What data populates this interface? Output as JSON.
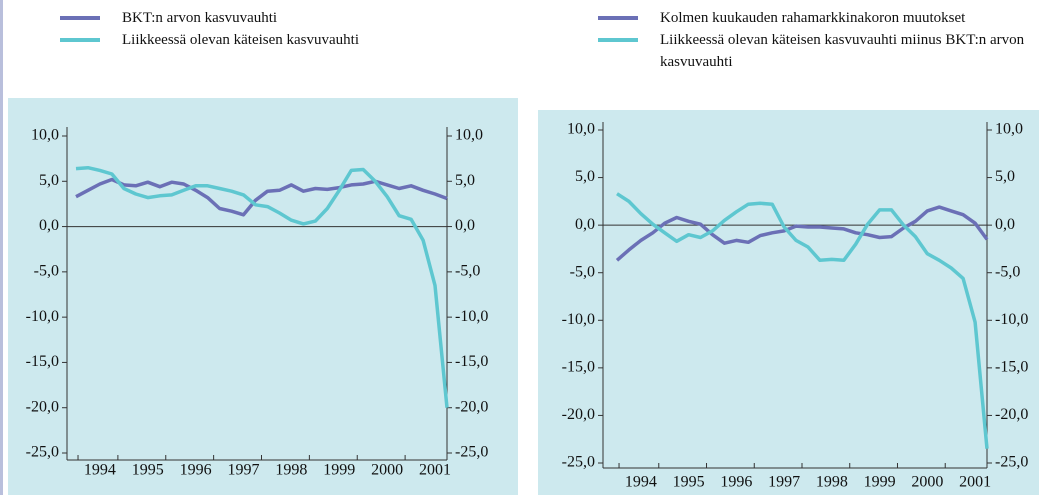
{
  "chart_data": [
    {
      "type": "line",
      "categories": [
        null,
        null,
        "1994",
        null,
        null,
        null,
        "1995",
        null,
        null,
        null,
        "1996",
        null,
        null,
        null,
        "1997",
        null,
        null,
        null,
        "1998",
        null,
        null,
        null,
        "1999",
        null,
        null,
        null,
        "2000",
        null,
        null,
        null,
        "2001",
        null
      ],
      "series": [
        {
          "name": "BKT:n arvon kasvuvauhti",
          "color": "#6b70b6",
          "values": [
            3.3,
            4.0,
            4.7,
            5.2,
            4.6,
            4.5,
            4.9,
            4.4,
            4.9,
            4.7,
            4.0,
            3.2,
            2.0,
            1.7,
            1.3,
            2.9,
            3.9,
            4.0,
            4.6,
            3.9,
            4.2,
            4.1,
            4.3,
            4.6,
            4.7,
            5.0,
            4.6,
            4.2,
            4.5,
            4.0,
            3.6,
            3.1
          ]
        },
        {
          "name": "Liikkeessä olevan käteisen kasvuvauhti",
          "color": "#5ec7d0",
          "values": [
            6.4,
            6.5,
            6.2,
            5.8,
            4.2,
            3.6,
            3.2,
            3.4,
            3.5,
            4.0,
            4.5,
            4.5,
            4.2,
            3.9,
            3.5,
            2.4,
            2.2,
            1.5,
            0.7,
            0.3,
            0.6,
            2.0,
            4.0,
            6.2,
            6.3,
            5.0,
            3.3,
            1.2,
            0.8,
            -1.5,
            -6.5,
            -20.0
          ]
        }
      ],
      "ylim": [
        -25,
        10
      ],
      "yticks": [
        {
          "value": 10,
          "label": "10,0"
        },
        {
          "value": 5,
          "label": "5,0"
        },
        {
          "value": 0,
          "label": "0,0"
        },
        {
          "value": -5,
          "label": "-5,0"
        },
        {
          "value": -10,
          "label": "-10,0"
        },
        {
          "value": -15,
          "label": "-15,0"
        },
        {
          "value": -20,
          "label": "-20,0"
        },
        {
          "value": -25,
          "label": "-25,0"
        }
      ],
      "y2lim": [
        -25,
        10
      ],
      "y2ticks": [
        {
          "value": 10,
          "label": "10,0"
        },
        {
          "value": 5,
          "label": "5,0"
        },
        {
          "value": 0,
          "label": "0,0"
        },
        {
          "value": -5,
          "label": "-5,0"
        },
        {
          "value": -10,
          "label": "-10,0"
        },
        {
          "value": -15,
          "label": "-15,0"
        },
        {
          "value": -20,
          "label": "-20,0"
        },
        {
          "value": -25,
          "label": "-25,0"
        }
      ]
    },
    {
      "type": "line",
      "categories": [
        null,
        null,
        "1994",
        null,
        null,
        null,
        "1995",
        null,
        null,
        null,
        "1996",
        null,
        null,
        null,
        "1997",
        null,
        null,
        null,
        "1998",
        null,
        null,
        null,
        "1999",
        null,
        null,
        null,
        "2000",
        null,
        null,
        null,
        "2001",
        null
      ],
      "series": [
        {
          "name": "Kolmen kuukauden rahamarkkinakoron muutokset",
          "color": "#6b70b6",
          "values": [
            -3.7,
            -2.6,
            -1.6,
            -0.8,
            0.2,
            0.8,
            0.4,
            0.1,
            -1.0,
            -1.9,
            -1.6,
            -1.8,
            -1.1,
            -0.8,
            -0.6,
            -0.1,
            -0.2,
            -0.2,
            -0.3,
            -0.4,
            -0.8,
            -1.0,
            -1.3,
            -1.2,
            -0.3,
            0.4,
            1.5,
            1.9,
            1.5,
            1.1,
            0.2,
            -1.5
          ]
        },
        {
          "name": "Liikkeessä olevan käteisen kasvuvauhti miinus BKT:n arvon kasvuvauhti",
          "color": "#5ec7d0",
          "values": [
            3.3,
            2.5,
            1.2,
            0.1,
            -0.8,
            -1.7,
            -1.0,
            -1.3,
            -0.6,
            0.5,
            1.4,
            2.2,
            2.3,
            2.2,
            -0.2,
            -1.6,
            -2.3,
            -3.7,
            -3.6,
            -3.7,
            -2.0,
            0.1,
            1.6,
            1.6,
            0.0,
            -1.2,
            -3.0,
            -3.7,
            -4.5,
            -5.6,
            -10.2,
            -23.5
          ]
        }
      ],
      "ylim": [
        -25,
        10
      ],
      "yticks": [
        {
          "value": 10,
          "label": "10,0"
        },
        {
          "value": 5,
          "label": "5,0"
        },
        {
          "value": 0,
          "label": "0,0"
        },
        {
          "value": -5,
          "label": "-5,0"
        },
        {
          "value": -10,
          "label": "-10,0"
        },
        {
          "value": -15,
          "label": "-15,0"
        },
        {
          "value": -20,
          "label": "-20,0"
        },
        {
          "value": -25,
          "label": "-25,0"
        }
      ],
      "y2lim": [
        -25,
        10
      ],
      "y2ticks": [
        {
          "value": 10,
          "label": "10,0"
        },
        {
          "value": 5,
          "label": "5,0"
        },
        {
          "value": 0,
          "label": "0,0"
        },
        {
          "value": -5,
          "label": "-5,0"
        },
        {
          "value": -10,
          "label": "-10,0"
        },
        {
          "value": -15,
          "label": "-15,0"
        },
        {
          "value": -20,
          "label": "-20,0"
        },
        {
          "value": -25,
          "label": "-25,0"
        }
      ]
    }
  ]
}
